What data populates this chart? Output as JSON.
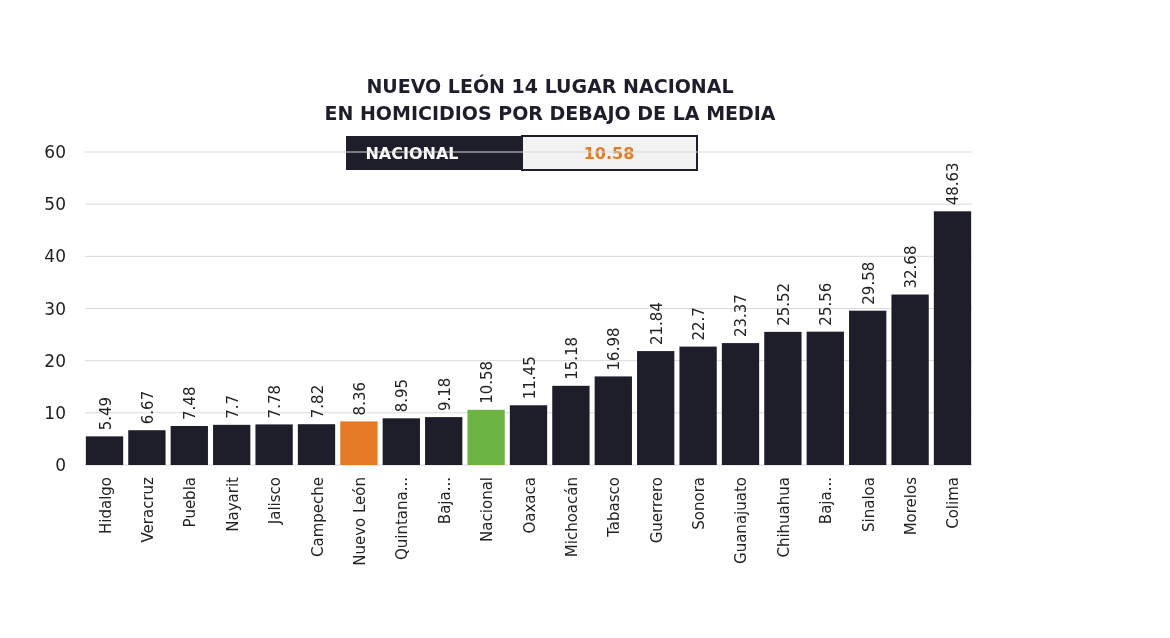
{
  "chart_data": {
    "type": "bar",
    "title": "NUEVO LEÓN 14 LUGAR NACIONAL\nEN HOMICIDIOS POR DEBAJO DE LA MEDIA",
    "categories": [
      "Hidalgo",
      "Veracruz",
      "Puebla",
      "Nayarit",
      "Jalisco",
      "Campeche",
      "Nuevo León",
      "Quintana...",
      "Baja...",
      "Nacional",
      "Oaxaca",
      "Michoacán",
      "Tabasco",
      "Guerrero",
      "Sonora",
      "Guanajuato",
      "Chihuahua",
      "Baja...",
      "Sinaloa",
      "Morelos",
      "Colima"
    ],
    "values": [
      5.49,
      6.67,
      7.48,
      7.7,
      7.78,
      7.82,
      8.36,
      8.95,
      9.18,
      10.58,
      11.45,
      15.18,
      16.98,
      21.84,
      22.7,
      23.37,
      25.52,
      25.56,
      29.58,
      32.68,
      48.63
    ],
    "colors": [
      "#1e1e2a",
      "#1e1e2a",
      "#1e1e2a",
      "#1e1e2a",
      "#1e1e2a",
      "#1e1e2a",
      "#e57a24",
      "#1e1e2a",
      "#1e1e2a",
      "#6cb444",
      "#1e1e2a",
      "#1e1e2a",
      "#1e1e2a",
      "#1e1e2a",
      "#1e1e2a",
      "#1e1e2a",
      "#1e1e2a",
      "#1e1e2a",
      "#1e1e2a",
      "#1e1e2a",
      "#1e1e2a"
    ],
    "ylim": [
      0,
      60
    ],
    "yticks": [
      0,
      10,
      20,
      30,
      40,
      50,
      60
    ],
    "grid": "y",
    "data_labels": true,
    "annotations": [
      "NACIONAL",
      "10.58"
    ]
  }
}
